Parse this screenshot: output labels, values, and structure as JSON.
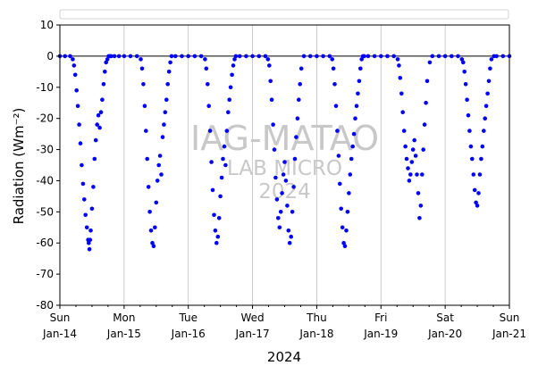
{
  "chart_data": {
    "type": "scatter",
    "xlabel": "2024",
    "ylabel": "Radiation (Wm⁻²)",
    "ylim": [
      -80,
      10
    ],
    "yticks": [
      10,
      0,
      -10,
      -20,
      -30,
      -40,
      -50,
      -60,
      -70,
      -80
    ],
    "xlim": [
      0,
      7
    ],
    "xticks": [
      {
        "day": "Sun",
        "date": "Jan-14"
      },
      {
        "day": "Mon",
        "date": "Jan-15"
      },
      {
        "day": "Tue",
        "date": "Jan-16"
      },
      {
        "day": "Wed",
        "date": "Jan-17"
      },
      {
        "day": "Thu",
        "date": "Jan-18"
      },
      {
        "day": "Fri",
        "date": "Jan-19"
      },
      {
        "day": "Sat",
        "date": "Jan-20"
      },
      {
        "day": "Sun",
        "date": "Jan-21"
      }
    ],
    "grid": "vertical",
    "legend": "top (empty)",
    "reference_line": 0,
    "marker_color": "#0000ff",
    "watermark": [
      "IAG-MATAO",
      "LAB MICRO",
      "2024"
    ],
    "daily_minimum": [
      {
        "date": "Jan-14",
        "min": -62
      },
      {
        "date": "Jan-15",
        "min": -61
      },
      {
        "date": "Jan-16",
        "min": -61
      },
      {
        "date": "Jan-17",
        "min": -61
      },
      {
        "date": "Jan-18",
        "min": -61
      },
      {
        "date": "Jan-19",
        "min": -52
      },
      {
        "date": "Jan-20",
        "min": -48
      }
    ],
    "series": [
      {
        "x": [
          0.0,
          0.08,
          0.16,
          0.2,
          0.22,
          0.24,
          0.26,
          0.28,
          0.3,
          0.32,
          0.34,
          0.36,
          0.38,
          0.4,
          0.42,
          0.44,
          0.45,
          0.46,
          0.47,
          0.48,
          0.5,
          0.52,
          0.54,
          0.56,
          0.58,
          0.6,
          0.62,
          0.64,
          0.66,
          0.68,
          0.7,
          0.72,
          0.74,
          0.76,
          0.78,
          0.8,
          0.85,
          0.92,
          1.0,
          1.1,
          1.2,
          1.26,
          1.28,
          1.3,
          1.32,
          1.34,
          1.36,
          1.38,
          1.4,
          1.42,
          1.44,
          1.46,
          1.48,
          1.5,
          1.52,
          1.54,
          1.56,
          1.58,
          1.6,
          1.62,
          1.64,
          1.66,
          1.68,
          1.7,
          1.72,
          1.74,
          1.8,
          1.9,
          2.0,
          2.1,
          2.2,
          2.26,
          2.28,
          2.3,
          2.32,
          2.34,
          2.36,
          2.38,
          2.4,
          2.42,
          2.44,
          2.46,
          2.48,
          2.5,
          2.52,
          2.54,
          2.56,
          2.58,
          2.6,
          2.62,
          2.64,
          2.66,
          2.68,
          2.7,
          2.72,
          2.74,
          2.8,
          2.9,
          3.0,
          3.1,
          3.2,
          3.24,
          3.26,
          3.28,
          3.3,
          3.32,
          3.34,
          3.36,
          3.38,
          3.4,
          3.42,
          3.44,
          3.46,
          3.48,
          3.5,
          3.52,
          3.54,
          3.56,
          3.58,
          3.6,
          3.62,
          3.64,
          3.66,
          3.68,
          3.7,
          3.72,
          3.74,
          3.76,
          3.8,
          3.9,
          4.0,
          4.1,
          4.2,
          4.24,
          4.26,
          4.28,
          4.3,
          4.32,
          4.34,
          4.36,
          4.38,
          4.4,
          4.42,
          4.44,
          4.46,
          4.48,
          4.5,
          4.52,
          4.54,
          4.56,
          4.58,
          4.6,
          4.62,
          4.64,
          4.66,
          4.68,
          4.7,
          4.72,
          4.74,
          4.8,
          4.9,
          5.0,
          5.1,
          5.2,
          5.26,
          5.28,
          5.3,
          5.32,
          5.34,
          5.36,
          5.38,
          5.4,
          5.42,
          5.44,
          5.46,
          5.48,
          5.5,
          5.52,
          5.54,
          5.56,
          5.58,
          5.6,
          5.62,
          5.64,
          5.66,
          5.68,
          5.7,
          5.72,
          5.76,
          5.8,
          5.9,
          6.0,
          6.1,
          6.2,
          6.26,
          6.28,
          6.3,
          6.32,
          6.34,
          6.36,
          6.38,
          6.4,
          6.42,
          6.44,
          6.46,
          6.48,
          6.5,
          6.52,
          6.54,
          6.56,
          6.58,
          6.6,
          6.62,
          6.64,
          6.66,
          6.68,
          6.7,
          6.72,
          6.76,
          6.8,
          6.9,
          7.0
        ],
        "y": [
          0,
          0,
          0,
          -1,
          -3,
          -6,
          -11,
          -16,
          -22,
          -28,
          -35,
          -41,
          -46,
          -51,
          -55,
          -59,
          -60,
          -62,
          -59,
          -56,
          -49,
          -42,
          -33,
          -27,
          -22,
          -19,
          -23,
          -18,
          -14,
          -9,
          -5,
          -2,
          -1,
          0,
          0,
          0,
          0,
          0,
          0,
          0,
          0,
          -1,
          -4,
          -9,
          -16,
          -24,
          -33,
          -42,
          -50,
          -56,
          -60,
          -61,
          -55,
          -47,
          -40,
          -35,
          -32,
          -38,
          -26,
          -22,
          -18,
          -14,
          -9,
          -5,
          -2,
          0,
          0,
          0,
          0,
          0,
          0,
          -1,
          -4,
          -9,
          -16,
          -24,
          -34,
          -43,
          -51,
          -56,
          -60,
          -58,
          -52,
          -45,
          -39,
          -33,
          -29,
          -35,
          -24,
          -18,
          -14,
          -10,
          -6,
          -3,
          -1,
          0,
          0,
          0,
          0,
          0,
          0,
          -1,
          -3,
          -8,
          -14,
          -22,
          -30,
          -39,
          -46,
          -52,
          -55,
          -50,
          -44,
          -38,
          -34,
          -40,
          -48,
          -56,
          -60,
          -58,
          -50,
          -42,
          -33,
          -26,
          -20,
          -14,
          -9,
          -4,
          0,
          0,
          0,
          0,
          0,
          -1,
          -4,
          -9,
          -16,
          -24,
          -32,
          -41,
          -49,
          -55,
          -60,
          -61,
          -56,
          -50,
          -44,
          -38,
          -33,
          -29,
          -25,
          -20,
          -16,
          -12,
          -8,
          -4,
          -1,
          0,
          0,
          0,
          0,
          0,
          0,
          0,
          -1,
          -3,
          -7,
          -12,
          -18,
          -24,
          -29,
          -33,
          -36,
          -40,
          -38,
          -34,
          -30,
          -27,
          -32,
          -38,
          -44,
          -52,
          -48,
          -38,
          -30,
          -22,
          -15,
          -8,
          -2,
          0,
          0,
          0,
          0,
          0,
          -1,
          -2,
          -5,
          -9,
          -14,
          -19,
          -24,
          -29,
          -33,
          -38,
          -43,
          -47,
          -48,
          -44,
          -38,
          -33,
          -29,
          -24,
          -20,
          -16,
          -12,
          -8,
          -4,
          -1,
          0,
          0,
          0,
          0
        ]
      }
    ]
  }
}
